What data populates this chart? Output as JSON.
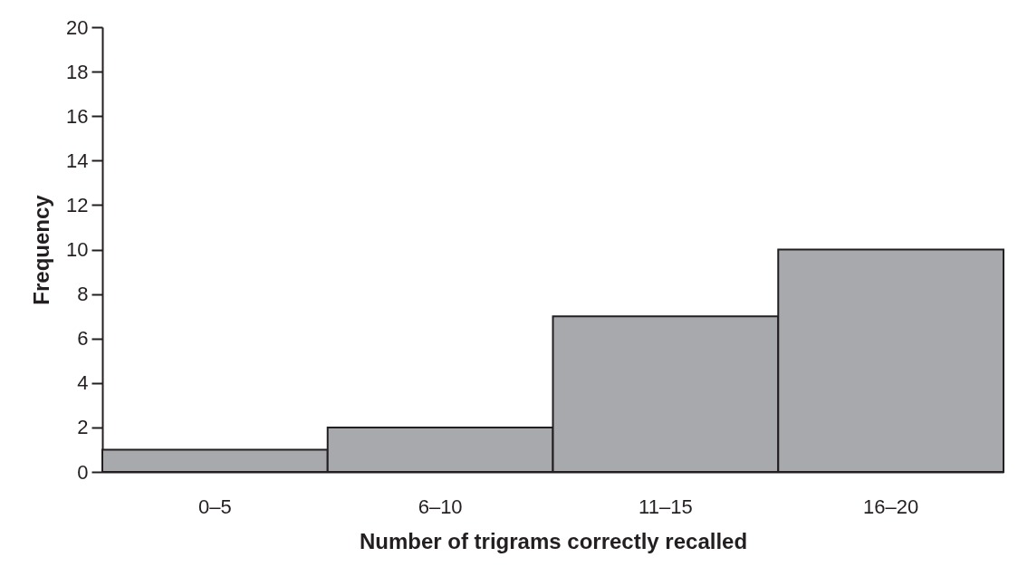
{
  "chart_data": {
    "type": "bar",
    "xlabel": "Number of trigrams correctly recalled",
    "ylabel": "Frequency",
    "categories": [
      "0–5",
      "6–10",
      "11–15",
      "16–20"
    ],
    "values": [
      1,
      2,
      7,
      10
    ],
    "color": "#a7a9ac",
    "ylim": [
      0,
      20
    ],
    "yticks": [
      0,
      2,
      4,
      6,
      8,
      10,
      12,
      14,
      16,
      18,
      20
    ],
    "grid": false
  }
}
